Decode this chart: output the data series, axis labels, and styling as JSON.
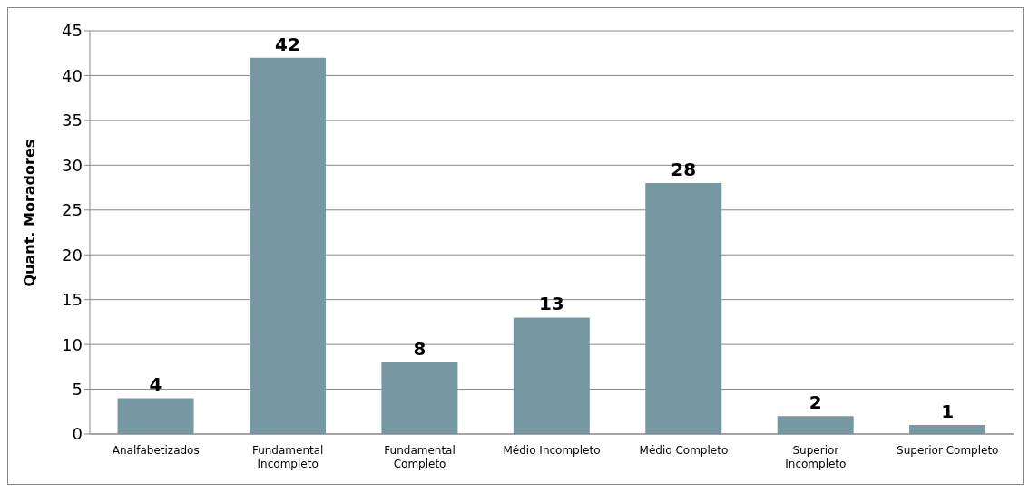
{
  "chart_data": {
    "type": "bar",
    "ylabel": "Quant. Moradores",
    "categories": [
      "Analfabetizados",
      "Fundamental Incompleto",
      "Fundamental Completo",
      "Médio Incompleto",
      "Médio Completo",
      "Superior Incompleto",
      "Superior Completo"
    ],
    "values": [
      4,
      42,
      8,
      13,
      28,
      2,
      1
    ],
    "color": "#7598a3",
    "ylim": [
      0,
      45
    ],
    "yticks": [
      0,
      5,
      10,
      15,
      20,
      25,
      30,
      35,
      40,
      45
    ],
    "grid": "y",
    "data_labels": true,
    "legend": false
  }
}
